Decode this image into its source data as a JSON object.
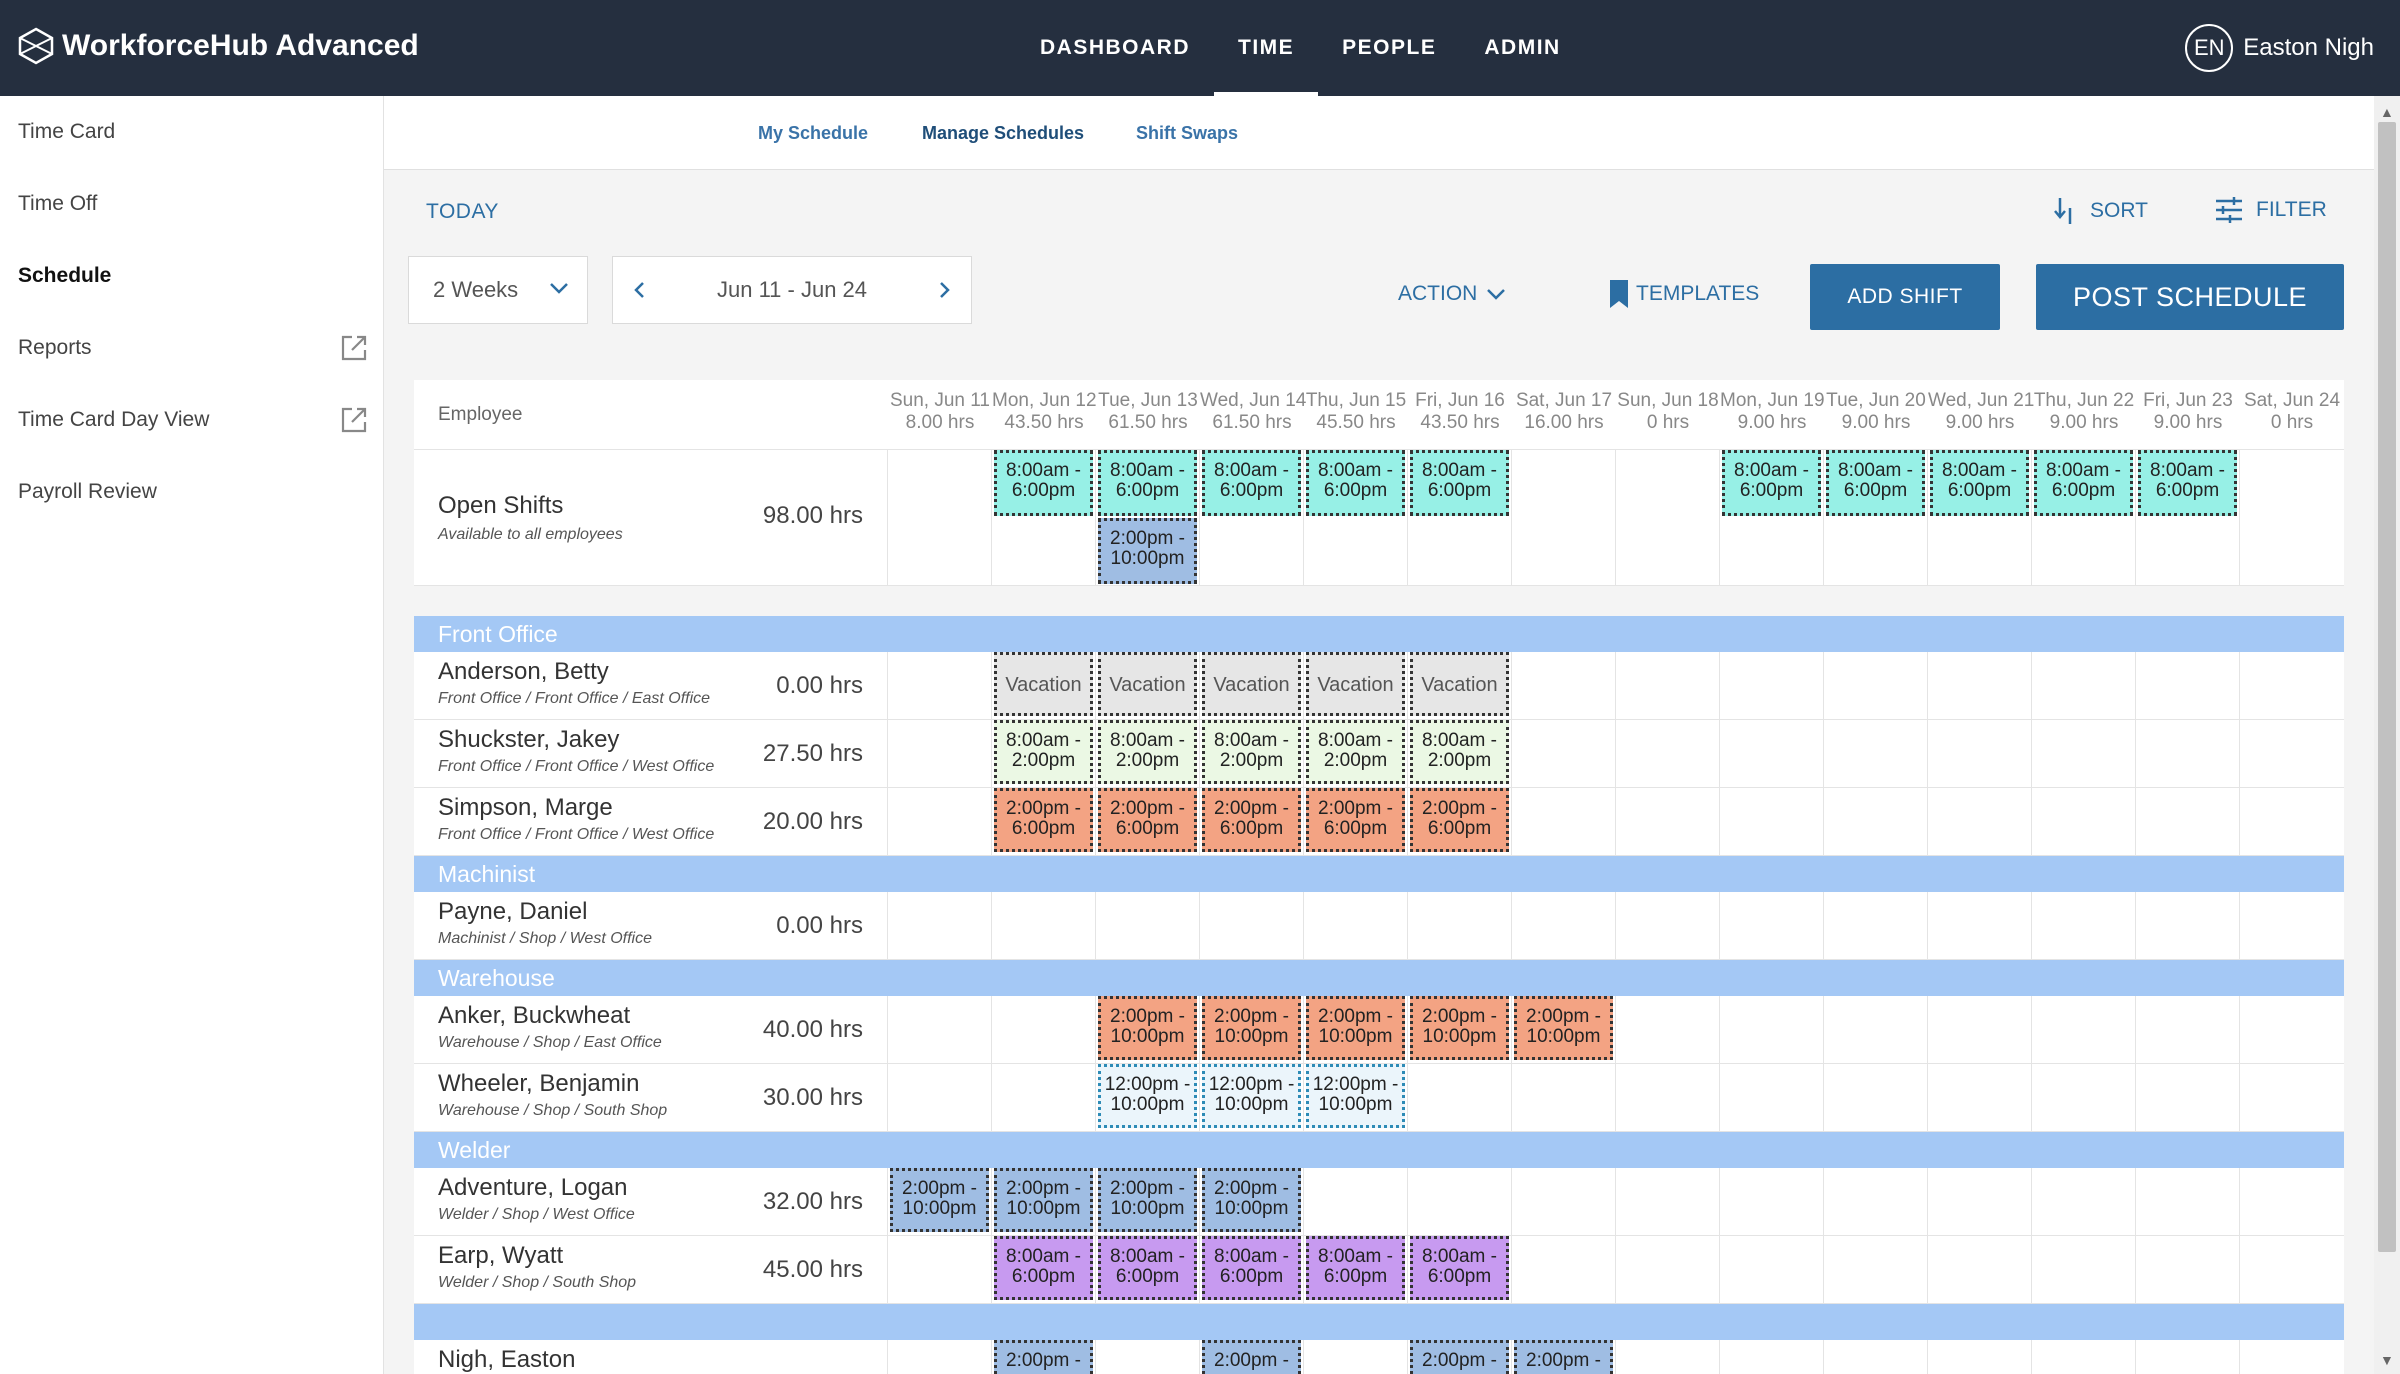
{
  "app": {
    "title": "WorkforceHub Advanced"
  },
  "topnav": [
    {
      "label": "DASHBOARD",
      "active": false
    },
    {
      "label": "TIME",
      "active": true
    },
    {
      "label": "PEOPLE",
      "active": false
    },
    {
      "label": "ADMIN",
      "active": false
    }
  ],
  "user": {
    "initials": "EN",
    "name": "Easton Nigh"
  },
  "sidebar": {
    "items": [
      {
        "label": "Time Card",
        "active": false,
        "external": false
      },
      {
        "label": "Time Off",
        "active": false,
        "external": false
      },
      {
        "label": "Schedule",
        "active": true,
        "external": false
      },
      {
        "label": "Reports",
        "active": false,
        "external": true
      },
      {
        "label": "Time Card Day View",
        "active": false,
        "external": true
      },
      {
        "label": "Payroll Review",
        "active": false,
        "external": false
      }
    ]
  },
  "subnav": {
    "tabs": [
      {
        "label": "My Schedule",
        "active": false
      },
      {
        "label": "Manage Schedules",
        "active": true
      },
      {
        "label": "Shift Swaps",
        "active": false
      }
    ]
  },
  "toolbar": {
    "today": "TODAY",
    "sort": "SORT",
    "filter": "FILTER",
    "range": "2 Weeks",
    "date_range": "Jun 11 - Jun 24",
    "action": "ACTION",
    "templates": "TEMPLATES",
    "add_shift": "ADD SHIFT",
    "post_schedule": "POST SCHEDULE"
  },
  "grid": {
    "employee_header": "Employee",
    "days": [
      {
        "label": "Sun, Jun 11",
        "hours": "8.00 hrs"
      },
      {
        "label": "Mon, Jun 12",
        "hours": "43.50 hrs"
      },
      {
        "label": "Tue, Jun 13",
        "hours": "61.50 hrs"
      },
      {
        "label": "Wed, Jun 14",
        "hours": "61.50 hrs"
      },
      {
        "label": "Thu, Jun 15",
        "hours": "45.50 hrs"
      },
      {
        "label": "Fri, Jun 16",
        "hours": "43.50 hrs"
      },
      {
        "label": "Sat, Jun 17",
        "hours": "16.00 hrs"
      },
      {
        "label": "Sun, Jun 18",
        "hours": "0 hrs"
      },
      {
        "label": "Mon, Jun 19",
        "hours": "9.00 hrs"
      },
      {
        "label": "Tue, Jun 20",
        "hours": "9.00 hrs"
      },
      {
        "label": "Wed, Jun 21",
        "hours": "9.00 hrs"
      },
      {
        "label": "Thu, Jun 22",
        "hours": "9.00 hrs"
      },
      {
        "label": "Fri, Jun 23",
        "hours": "9.00 hrs"
      },
      {
        "label": "Sat, Jun 24",
        "hours": "0 hrs"
      }
    ]
  },
  "open_shifts": {
    "name": "Open Shifts",
    "subtitle": "Available to all employees",
    "hours": "98.00 hrs"
  },
  "groups": [
    {
      "name": "Front Office",
      "employees": [
        {
          "name": "Anderson, Betty",
          "location": "Front Office / Front Office / East Office",
          "hours": "0.00 hrs"
        },
        {
          "name": "Shuckster, Jakey",
          "location": "Front Office / Front Office / West Office",
          "hours": "27.50 hrs"
        },
        {
          "name": "Simpson, Marge",
          "location": "Front Office / Front Office / West Office",
          "hours": "20.00 hrs"
        }
      ]
    },
    {
      "name": "Machinist",
      "employees": [
        {
          "name": "Payne, Daniel",
          "location": "Machinist / Shop / West Office",
          "hours": "0.00 hrs"
        }
      ]
    },
    {
      "name": "Warehouse",
      "employees": [
        {
          "name": "Anker, Buckwheat",
          "location": "Warehouse / Shop / East Office",
          "hours": "40.00 hrs"
        },
        {
          "name": "Wheeler, Benjamin",
          "location": "Warehouse / Shop / South Shop",
          "hours": "30.00 hrs"
        }
      ]
    },
    {
      "name": "Welder",
      "employees": [
        {
          "name": "Adventure, Logan",
          "location": "Welder / Shop / West Office",
          "hours": "32.00 hrs"
        },
        {
          "name": "Earp, Wyatt",
          "location": "Welder / Shop / South Shop",
          "hours": "45.00 hrs"
        }
      ]
    },
    {
      "name": "",
      "employees": [
        {
          "name": "Nigh, Easton",
          "location": "",
          "hours": ""
        }
      ]
    }
  ],
  "shifts": {
    "open": [
      {
        "day": 1,
        "slot": 0,
        "text": "8:00am - 6:00pm",
        "color": "cyan"
      },
      {
        "day": 2,
        "slot": 0,
        "text": "8:00am - 6:00pm",
        "color": "cyan"
      },
      {
        "day": 3,
        "slot": 0,
        "text": "8:00am - 6:00pm",
        "color": "cyan"
      },
      {
        "day": 4,
        "slot": 0,
        "text": "8:00am - 6:00pm",
        "color": "cyan"
      },
      {
        "day": 5,
        "slot": 0,
        "text": "8:00am - 6:00pm",
        "color": "cyan"
      },
      {
        "day": 8,
        "slot": 0,
        "text": "8:00am - 6:00pm",
        "color": "cyan"
      },
      {
        "day": 9,
        "slot": 0,
        "text": "8:00am - 6:00pm",
        "color": "cyan"
      },
      {
        "day": 10,
        "slot": 0,
        "text": "8:00am - 6:00pm",
        "color": "cyan"
      },
      {
        "day": 11,
        "slot": 0,
        "text": "8:00am - 6:00pm",
        "color": "cyan"
      },
      {
        "day": 12,
        "slot": 0,
        "text": "8:00am - 6:00pm",
        "color": "cyan"
      },
      {
        "day": 2,
        "slot": 1,
        "text": "2:00pm - 10:00pm",
        "color": "blue"
      }
    ],
    "employees": {
      "Anderson, Betty": [
        {
          "day": 1,
          "text": "Vacation",
          "color": "grey"
        },
        {
          "day": 2,
          "text": "Vacation",
          "color": "grey"
        },
        {
          "day": 3,
          "text": "Vacation",
          "color": "grey"
        },
        {
          "day": 4,
          "text": "Vacation",
          "color": "grey"
        },
        {
          "day": 5,
          "text": "Vacation",
          "color": "grey"
        }
      ],
      "Shuckster, Jakey": [
        {
          "day": 1,
          "text": "8:00am - 2:00pm",
          "color": "green"
        },
        {
          "day": 2,
          "text": "8:00am - 2:00pm",
          "color": "green"
        },
        {
          "day": 3,
          "text": "8:00am - 2:00pm",
          "color": "green"
        },
        {
          "day": 4,
          "text": "8:00am - 2:00pm",
          "color": "green"
        },
        {
          "day": 5,
          "text": "8:00am - 2:00pm",
          "color": "green"
        }
      ],
      "Simpson, Marge": [
        {
          "day": 1,
          "text": "2:00pm - 6:00pm",
          "color": "orange"
        },
        {
          "day": 2,
          "text": "2:00pm - 6:00pm",
          "color": "orange"
        },
        {
          "day": 3,
          "text": "2:00pm - 6:00pm",
          "color": "orange"
        },
        {
          "day": 4,
          "text": "2:00pm - 6:00pm",
          "color": "orange"
        },
        {
          "day": 5,
          "text": "2:00pm - 6:00pm",
          "color": "orange"
        }
      ],
      "Payne, Daniel": [],
      "Anker, Buckwheat": [
        {
          "day": 2,
          "text": "2:00pm - 10:00pm",
          "color": "orange"
        },
        {
          "day": 3,
          "text": "2:00pm - 10:00pm",
          "color": "orange"
        },
        {
          "day": 4,
          "text": "2:00pm - 10:00pm",
          "color": "orange"
        },
        {
          "day": 5,
          "text": "2:00pm - 10:00pm",
          "color": "orange"
        },
        {
          "day": 6,
          "text": "2:00pm - 10:00pm",
          "color": "orange"
        }
      ],
      "Wheeler, Benjamin": [
        {
          "day": 2,
          "text": "12:00pm - 10:00pm",
          "color": "lightblue"
        },
        {
          "day": 3,
          "text": "12:00pm - 10:00pm",
          "color": "lightblue"
        },
        {
          "day": 4,
          "text": "12:00pm - 10:00pm",
          "color": "lightblue"
        }
      ],
      "Adventure, Logan": [
        {
          "day": 0,
          "text": "2:00pm - 10:00pm",
          "color": "blue"
        },
        {
          "day": 1,
          "text": "2:00pm - 10:00pm",
          "color": "blue"
        },
        {
          "day": 2,
          "text": "2:00pm - 10:00pm",
          "color": "blue"
        },
        {
          "day": 3,
          "text": "2:00pm - 10:00pm",
          "color": "blue"
        }
      ],
      "Earp, Wyatt": [
        {
          "day": 1,
          "text": "8:00am - 6:00pm",
          "color": "purple"
        },
        {
          "day": 2,
          "text": "8:00am - 6:00pm",
          "color": "purple"
        },
        {
          "day": 3,
          "text": "8:00am - 6:00pm",
          "color": "purple"
        },
        {
          "day": 4,
          "text": "8:00am - 6:00pm",
          "color": "purple"
        },
        {
          "day": 5,
          "text": "8:00am - 6:00pm",
          "color": "purple"
        }
      ],
      "Nigh, Easton": [
        {
          "day": 1,
          "text": "2:00pm -",
          "color": "blue"
        },
        {
          "day": 3,
          "text": "2:00pm -",
          "color": "blue"
        },
        {
          "day": 5,
          "text": "2:00pm -",
          "color": "blue"
        },
        {
          "day": 6,
          "text": "2:00pm -",
          "color": "blue"
        }
      ]
    }
  },
  "colors": {
    "topbar": "#252f3f",
    "accent": "#2c6ea3",
    "group_header": "#a4c8f5",
    "shift_cyan": "#97f0e6",
    "shift_blue": "#9fbde3",
    "shift_grey": "#e6e6e6",
    "shift_green": "#ebf8e4",
    "shift_orange": "#f3a383",
    "shift_lightblue": "#ebf5fb",
    "shift_purple": "#c79af0"
  }
}
